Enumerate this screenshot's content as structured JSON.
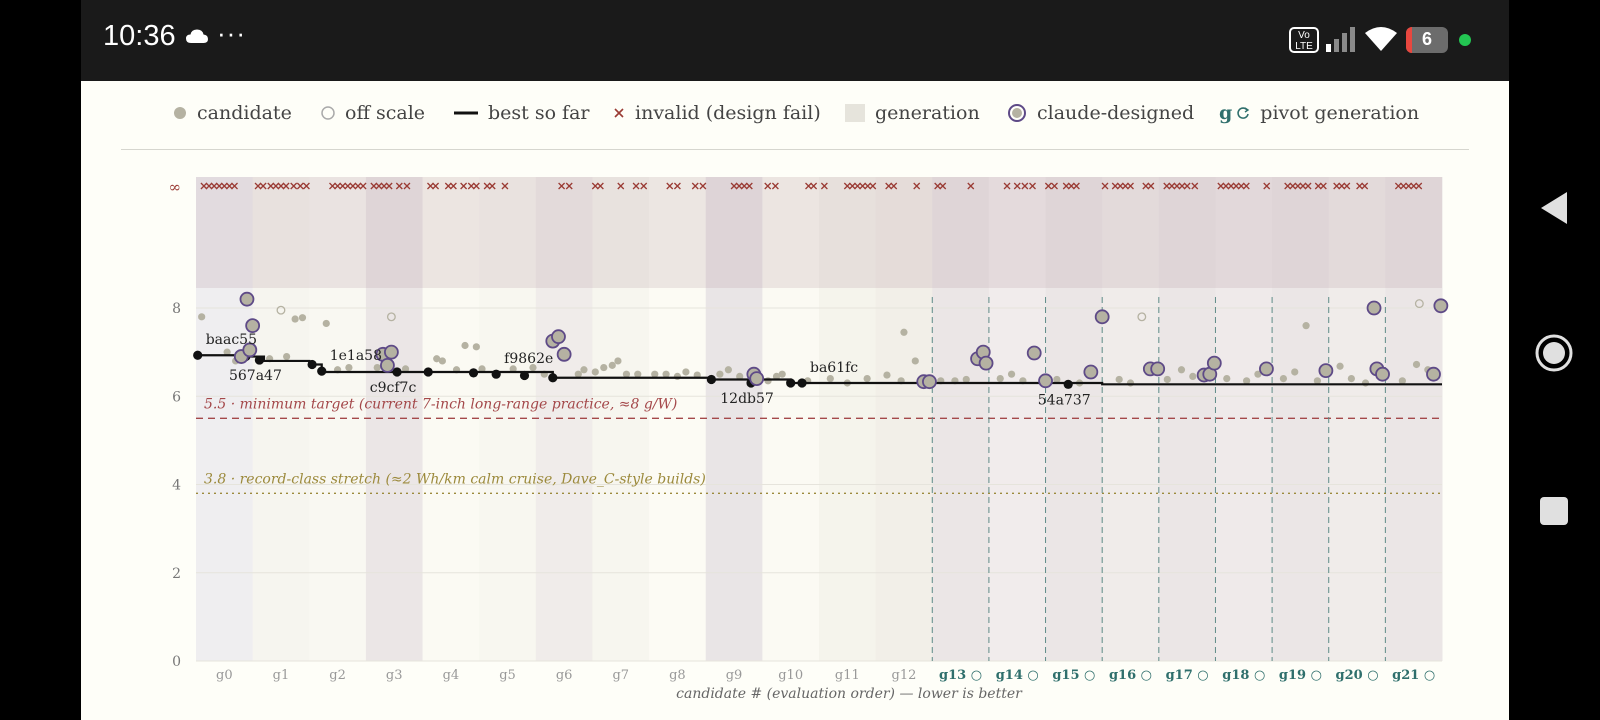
{
  "status_bar": {
    "time": "10:36",
    "dots": "···",
    "volte": "Vo LTE",
    "battery": "6",
    "icons": [
      "cloud-icon",
      "volte-icon",
      "signal-icon",
      "wifi-icon",
      "battery-icon"
    ]
  },
  "legend": [
    {
      "key": "candidate",
      "label": "candidate"
    },
    {
      "key": "offscale",
      "label": "off scale"
    },
    {
      "key": "best",
      "label": "best so far"
    },
    {
      "key": "invalid",
      "label": "invalid (design fail)"
    },
    {
      "key": "generation",
      "label": "generation"
    },
    {
      "key": "claude",
      "label": "claude-designed"
    },
    {
      "key": "pivot",
      "label": "pivot generation",
      "symbol": "g"
    }
  ],
  "colors": {
    "candidate": "#b5b2a2",
    "best": "#111111",
    "invalid": "#9a3b34",
    "claude": "#5e4a87",
    "pivot": "#2f6f6c",
    "min_target": "#a4484a",
    "stretch": "#9c8a3c"
  },
  "nav_icons": [
    "back-icon",
    "home-icon",
    "recents-icon"
  ],
  "chart_data": {
    "type": "scatter",
    "xlabel": "candidate # (evaluation order) — lower is better",
    "ylim": [
      0,
      8.8
    ],
    "yticks": [
      0,
      2,
      4,
      6,
      8
    ],
    "infinity_label": "∞",
    "generations": [
      "g0",
      "g1",
      "g2",
      "g3",
      "g4",
      "g5",
      "g6",
      "g7",
      "g8",
      "g9",
      "g10",
      "g11",
      "g12",
      "g13",
      "g14",
      "g15",
      "g16",
      "g17",
      "g18",
      "g19",
      "g20",
      "g21"
    ],
    "pivot_from": 13,
    "pivot_symbol": "○",
    "reference_lines": [
      {
        "y": 5.5,
        "label": "5.5 · minimum target (current 7-inch long-range practice, ≈8 g/W)",
        "style": "dashed"
      },
      {
        "y": 3.8,
        "label": "3.8 · record-class stretch (≈2 Wh/km calm cruise, Dave_C-style builds)",
        "style": "dotted"
      }
    ],
    "best_so_far": [
      {
        "gen": 0,
        "x": 0.03,
        "y": 6.93
      },
      {
        "gen": 0,
        "x": 0.9,
        "y": 6.93
      },
      {
        "gen": 0,
        "x": 0.9,
        "y": 6.9
      },
      {
        "gen": 1,
        "x": 0.2,
        "y": 6.9
      },
      {
        "gen": 1,
        "x": 0.2,
        "y": 6.8
      },
      {
        "gen": 1,
        "x": 1.0,
        "y": 6.8
      },
      {
        "gen": 1,
        "x": 1.0,
        "y": 6.72
      },
      {
        "gen": 2,
        "x": 0.22,
        "y": 6.72
      },
      {
        "gen": 2,
        "x": 0.22,
        "y": 6.55
      },
      {
        "gen": 3,
        "x": 0.55,
        "y": 6.55
      },
      {
        "gen": 6,
        "x": 0.3,
        "y": 6.55
      },
      {
        "gen": 6,
        "x": 0.3,
        "y": 6.42
      },
      {
        "gen": 9,
        "x": 0.1,
        "y": 6.42
      },
      {
        "gen": 9,
        "x": 0.1,
        "y": 6.38
      },
      {
        "gen": 10,
        "x": 0.5,
        "y": 6.38
      },
      {
        "gen": 10,
        "x": 0.5,
        "y": 6.3
      },
      {
        "gen": 16,
        "x": 0.0,
        "y": 6.3
      },
      {
        "gen": 16,
        "x": 0.0,
        "y": 6.27
      },
      {
        "gen": 21,
        "x": 1.0,
        "y": 6.27
      }
    ],
    "best_points": [
      {
        "gen": 0,
        "x": 0.03,
        "y": 6.93,
        "label": "baac55",
        "label_pos": "above"
      },
      {
        "gen": 0,
        "x": 0.88,
        "y": 6.9
      },
      {
        "gen": 1,
        "x": 0.12,
        "y": 6.82,
        "label": "567a47",
        "label_pos": "below"
      },
      {
        "gen": 2,
        "x": 0.05,
        "y": 6.72
      },
      {
        "gen": 2,
        "x": 0.22,
        "y": 6.57,
        "label": "1e1a58",
        "label_pos": "above"
      },
      {
        "gen": 3,
        "x": 0.55,
        "y": 6.55,
        "label": "c9cf7c",
        "label_pos": "below"
      },
      {
        "gen": 4,
        "x": 0.1,
        "y": 6.55
      },
      {
        "gen": 4,
        "x": 0.9,
        "y": 6.53
      },
      {
        "gen": 5,
        "x": 0.3,
        "y": 6.5,
        "label": "f9862e",
        "label_pos": "above"
      },
      {
        "gen": 5,
        "x": 0.8,
        "y": 6.47
      },
      {
        "gen": 6,
        "x": 0.3,
        "y": 6.42
      },
      {
        "gen": 9,
        "x": 0.1,
        "y": 6.38
      },
      {
        "gen": 9,
        "x": 0.8,
        "y": 6.3,
        "label": "12db57",
        "label_pos": "below"
      },
      {
        "gen": 10,
        "x": 0.5,
        "y": 6.3
      },
      {
        "gen": 10,
        "x": 0.7,
        "y": 6.3,
        "label": "ba61fc",
        "label_pos": "above"
      },
      {
        "gen": 15,
        "x": 0.4,
        "y": 6.27,
        "label": "54a737",
        "label_pos": "below"
      }
    ],
    "claude_points": [
      {
        "gen": 0,
        "x": 0.9,
        "y": 8.2
      },
      {
        "gen": 1,
        "x": 0.0,
        "y": 7.6
      },
      {
        "gen": 0,
        "x": 0.8,
        "y": 6.9
      },
      {
        "gen": 0,
        "x": 0.95,
        "y": 7.05
      },
      {
        "gen": 3,
        "x": 0.3,
        "y": 6.95
      },
      {
        "gen": 3,
        "x": 0.45,
        "y": 7.0
      },
      {
        "gen": 3,
        "x": 0.38,
        "y": 6.7
      },
      {
        "gen": 6,
        "x": 0.3,
        "y": 7.25
      },
      {
        "gen": 6,
        "x": 0.4,
        "y": 7.35
      },
      {
        "gen": 6,
        "x": 0.5,
        "y": 6.95
      },
      {
        "gen": 9,
        "x": 0.85,
        "y": 6.5
      },
      {
        "gen": 9,
        "x": 0.9,
        "y": 6.4
      },
      {
        "gen": 12,
        "x": 0.85,
        "y": 6.33
      },
      {
        "gen": 12,
        "x": 0.95,
        "y": 6.33
      },
      {
        "gen": 13,
        "x": 0.8,
        "y": 6.85
      },
      {
        "gen": 13,
        "x": 0.9,
        "y": 7.0
      },
      {
        "gen": 13,
        "x": 0.95,
        "y": 6.75
      },
      {
        "gen": 14,
        "x": 0.8,
        "y": 6.98
      },
      {
        "gen": 15,
        "x": 0.0,
        "y": 6.35
      },
      {
        "gen": 15,
        "x": 0.8,
        "y": 6.55
      },
      {
        "gen": 16,
        "x": 0.0,
        "y": 7.8
      },
      {
        "gen": 16,
        "x": 0.85,
        "y": 6.62
      },
      {
        "gen": 16,
        "x": 0.98,
        "y": 6.62
      },
      {
        "gen": 17,
        "x": 0.8,
        "y": 6.48
      },
      {
        "gen": 17,
        "x": 0.9,
        "y": 6.5
      },
      {
        "gen": 17,
        "x": 0.98,
        "y": 6.75
      },
      {
        "gen": 18,
        "x": 0.9,
        "y": 6.62
      },
      {
        "gen": 19,
        "x": 0.95,
        "y": 6.58
      },
      {
        "gen": 20,
        "x": 0.8,
        "y": 8.0
      },
      {
        "gen": 20,
        "x": 0.85,
        "y": 6.62
      },
      {
        "gen": 20,
        "x": 0.95,
        "y": 6.5
      },
      {
        "gen": 21,
        "x": 0.85,
        "y": 6.5
      },
      {
        "gen": 21,
        "x": 0.98,
        "y": 8.05
      }
    ],
    "offscale_points": [
      {
        "gen": 1,
        "x": 0.5,
        "y": 7.95
      },
      {
        "gen": 3,
        "x": 0.45,
        "y": 7.8
      },
      {
        "gen": 16,
        "x": 0.7,
        "y": 7.8
      },
      {
        "gen": 21,
        "x": 0.6,
        "y": 8.1
      }
    ],
    "candidate_points": [
      {
        "gen": 0,
        "x": 0.1,
        "y": 7.8
      },
      {
        "gen": 0,
        "x": 0.55,
        "y": 7.0
      },
      {
        "gen": 0,
        "x": 0.7,
        "y": 6.8
      },
      {
        "gen": 1,
        "x": 0.3,
        "y": 6.85
      },
      {
        "gen": 1,
        "x": 0.6,
        "y": 6.9
      },
      {
        "gen": 1,
        "x": 0.75,
        "y": 7.75
      },
      {
        "gen": 1,
        "x": 0.88,
        "y": 7.78
      },
      {
        "gen": 2,
        "x": 0.3,
        "y": 7.65
      },
      {
        "gen": 2,
        "x": 0.5,
        "y": 6.6
      },
      {
        "gen": 2,
        "x": 0.7,
        "y": 6.65
      },
      {
        "gen": 3,
        "x": 0.2,
        "y": 6.65
      },
      {
        "gen": 3,
        "x": 0.7,
        "y": 6.62
      },
      {
        "gen": 4,
        "x": 0.25,
        "y": 6.85
      },
      {
        "gen": 4,
        "x": 0.35,
        "y": 6.8
      },
      {
        "gen": 4,
        "x": 0.6,
        "y": 6.6
      },
      {
        "gen": 4,
        "x": 0.75,
        "y": 7.15
      },
      {
        "gen": 4,
        "x": 0.95,
        "y": 7.12
      },
      {
        "gen": 5,
        "x": 0.05,
        "y": 6.62
      },
      {
        "gen": 5,
        "x": 0.6,
        "y": 6.62
      },
      {
        "gen": 5,
        "x": 0.95,
        "y": 6.65
      },
      {
        "gen": 6,
        "x": 0.15,
        "y": 6.5
      },
      {
        "gen": 6,
        "x": 0.75,
        "y": 6.5
      },
      {
        "gen": 6,
        "x": 0.85,
        "y": 6.6
      },
      {
        "gen": 7,
        "x": 0.05,
        "y": 6.55
      },
      {
        "gen": 7,
        "x": 0.2,
        "y": 6.65
      },
      {
        "gen": 7,
        "x": 0.35,
        "y": 6.7
      },
      {
        "gen": 7,
        "x": 0.45,
        "y": 6.8
      },
      {
        "gen": 7,
        "x": 0.6,
        "y": 6.5
      },
      {
        "gen": 7,
        "x": 0.8,
        "y": 6.5
      },
      {
        "gen": 8,
        "x": 0.1,
        "y": 6.5
      },
      {
        "gen": 8,
        "x": 0.3,
        "y": 6.5
      },
      {
        "gen": 8,
        "x": 0.5,
        "y": 6.45
      },
      {
        "gen": 8,
        "x": 0.65,
        "y": 6.55
      },
      {
        "gen": 8,
        "x": 0.85,
        "y": 6.48
      },
      {
        "gen": 9,
        "x": 0.25,
        "y": 6.5
      },
      {
        "gen": 9,
        "x": 0.4,
        "y": 6.6
      },
      {
        "gen": 9,
        "x": 0.6,
        "y": 6.45
      },
      {
        "gen": 10,
        "x": 0.1,
        "y": 6.35
      },
      {
        "gen": 10,
        "x": 0.25,
        "y": 6.45
      },
      {
        "gen": 10,
        "x": 0.35,
        "y": 6.5
      },
      {
        "gen": 10,
        "x": 0.8,
        "y": 6.35
      },
      {
        "gen": 11,
        "x": 0.2,
        "y": 6.4
      },
      {
        "gen": 11,
        "x": 0.5,
        "y": 6.3
      },
      {
        "gen": 11,
        "x": 0.85,
        "y": 6.4
      },
      {
        "gen": 12,
        "x": 0.2,
        "y": 6.48
      },
      {
        "gen": 12,
        "x": 0.45,
        "y": 6.35
      },
      {
        "gen": 12,
        "x": 0.5,
        "y": 7.45
      },
      {
        "gen": 12,
        "x": 0.7,
        "y": 6.8
      },
      {
        "gen": 13,
        "x": 0.15,
        "y": 6.35
      },
      {
        "gen": 13,
        "x": 0.4,
        "y": 6.35
      },
      {
        "gen": 13,
        "x": 0.6,
        "y": 6.38
      },
      {
        "gen": 14,
        "x": 0.2,
        "y": 6.4
      },
      {
        "gen": 14,
        "x": 0.4,
        "y": 6.5
      },
      {
        "gen": 14,
        "x": 0.6,
        "y": 6.35
      },
      {
        "gen": 15,
        "x": 0.2,
        "y": 6.38
      },
      {
        "gen": 15,
        "x": 0.6,
        "y": 6.3
      },
      {
        "gen": 16,
        "x": 0.3,
        "y": 6.38
      },
      {
        "gen": 16,
        "x": 0.5,
        "y": 6.3
      },
      {
        "gen": 17,
        "x": 0.15,
        "y": 6.38
      },
      {
        "gen": 17,
        "x": 0.4,
        "y": 6.6
      },
      {
        "gen": 17,
        "x": 0.6,
        "y": 6.45
      },
      {
        "gen": 18,
        "x": 0.2,
        "y": 6.4
      },
      {
        "gen": 18,
        "x": 0.55,
        "y": 6.35
      },
      {
        "gen": 18,
        "x": 0.75,
        "y": 6.5
      },
      {
        "gen": 19,
        "x": 0.2,
        "y": 6.4
      },
      {
        "gen": 19,
        "x": 0.4,
        "y": 6.55
      },
      {
        "gen": 19,
        "x": 0.6,
        "y": 7.6
      },
      {
        "gen": 19,
        "x": 0.8,
        "y": 6.35
      },
      {
        "gen": 20,
        "x": 0.2,
        "y": 6.68
      },
      {
        "gen": 20,
        "x": 0.4,
        "y": 6.4
      },
      {
        "gen": 20,
        "x": 0.65,
        "y": 6.3
      },
      {
        "gen": 21,
        "x": 0.3,
        "y": 6.35
      },
      {
        "gen": 21,
        "x": 0.55,
        "y": 6.72
      },
      {
        "gen": 21,
        "x": 0.75,
        "y": 6.6
      }
    ],
    "invalid_marks": [
      {
        "gen": 0,
        "x": 0.1
      },
      {
        "gen": 0,
        "x": 0.2
      },
      {
        "gen": 0,
        "x": 0.3
      },
      {
        "gen": 0,
        "x": 0.4
      },
      {
        "gen": 0,
        "x": 0.5
      },
      {
        "gen": 0,
        "x": 0.6
      },
      {
        "gen": 0,
        "x": 0.7
      },
      {
        "gen": 1,
        "x": 0.05
      },
      {
        "gen": 1,
        "x": 0.15
      },
      {
        "gen": 1,
        "x": 0.3
      },
      {
        "gen": 1,
        "x": 0.4
      },
      {
        "gen": 1,
        "x": 0.5
      },
      {
        "gen": 1,
        "x": 0.6
      },
      {
        "gen": 1,
        "x": 0.75
      },
      {
        "gen": 1,
        "x": 0.88
      },
      {
        "gen": 1,
        "x": 1.0
      },
      {
        "gen": 2,
        "x": 0.4
      },
      {
        "gen": 2,
        "x": 0.5
      },
      {
        "gen": 2,
        "x": 0.6
      },
      {
        "gen": 2,
        "x": 0.7
      },
      {
        "gen": 2,
        "x": 0.8
      },
      {
        "gen": 2,
        "x": 0.9
      },
      {
        "gen": 2,
        "x": 1.0
      },
      {
        "gen": 3,
        "x": 0.1
      },
      {
        "gen": 3,
        "x": 0.2
      },
      {
        "gen": 3,
        "x": 0.3
      },
      {
        "gen": 3,
        "x": 0.4
      },
      {
        "gen": 3,
        "x": 0.6
      },
      {
        "gen": 3,
        "x": 0.75
      },
      {
        "gen": 4,
        "x": 0.1
      },
      {
        "gen": 4,
        "x": 0.2
      },
      {
        "gen": 4,
        "x": 0.45
      },
      {
        "gen": 4,
        "x": 0.55
      },
      {
        "gen": 4,
        "x": 0.75
      },
      {
        "gen": 4,
        "x": 0.9
      },
      {
        "gen": 4,
        "x": 1.0
      },
      {
        "gen": 5,
        "x": 0.1
      },
      {
        "gen": 5,
        "x": 0.2
      },
      {
        "gen": 5,
        "x": 0.45
      },
      {
        "gen": 6,
        "x": 0.45
      },
      {
        "gen": 6,
        "x": 0.6
      },
      {
        "gen": 7,
        "x": 0.0
      },
      {
        "gen": 7,
        "x": 0.1
      },
      {
        "gen": 7,
        "x": 0.5
      },
      {
        "gen": 7,
        "x": 0.8
      },
      {
        "gen": 7,
        "x": 0.95
      },
      {
        "gen": 8,
        "x": 0.35
      },
      {
        "gen": 8,
        "x": 0.5
      },
      {
        "gen": 8,
        "x": 0.85
      },
      {
        "gen": 8,
        "x": 1.0
      },
      {
        "gen": 9,
        "x": 0.5
      },
      {
        "gen": 9,
        "x": 0.6
      },
      {
        "gen": 9,
        "x": 0.7
      },
      {
        "gen": 9,
        "x": 0.8
      },
      {
        "gen": 10,
        "x": 0.05
      },
      {
        "gen": 10,
        "x": 0.2
      },
      {
        "gen": 10,
        "x": 0.85
      },
      {
        "gen": 10,
        "x": 0.95
      },
      {
        "gen": 11,
        "x": 0.05
      },
      {
        "gen": 11,
        "x": 0.5
      },
      {
        "gen": 11,
        "x": 0.6
      },
      {
        "gen": 11,
        "x": 0.7
      },
      {
        "gen": 11,
        "x": 0.8
      },
      {
        "gen": 11,
        "x": 0.9
      },
      {
        "gen": 11,
        "x": 1.0
      },
      {
        "gen": 12,
        "x": 0.2
      },
      {
        "gen": 12,
        "x": 0.3
      },
      {
        "gen": 12,
        "x": 0.75
      },
      {
        "gen": 13,
        "x": 0.05
      },
      {
        "gen": 13,
        "x": 0.15
      },
      {
        "gen": 13,
        "x": 0.7
      },
      {
        "gen": 14,
        "x": 0.3
      },
      {
        "gen": 14,
        "x": 0.5
      },
      {
        "gen": 14,
        "x": 0.65
      },
      {
        "gen": 14,
        "x": 0.8
      },
      {
        "gen": 15,
        "x": 0.0
      },
      {
        "gen": 15,
        "x": 0.12
      },
      {
        "gen": 15,
        "x": 0.35
      },
      {
        "gen": 15,
        "x": 0.45
      },
      {
        "gen": 15,
        "x": 0.55
      },
      {
        "gen": 16,
        "x": 0.0
      },
      {
        "gen": 16,
        "x": 0.2
      },
      {
        "gen": 16,
        "x": 0.3
      },
      {
        "gen": 16,
        "x": 0.4
      },
      {
        "gen": 16,
        "x": 0.5
      },
      {
        "gen": 16,
        "x": 0.8
      },
      {
        "gen": 16,
        "x": 0.9
      },
      {
        "gen": 17,
        "x": 0.1
      },
      {
        "gen": 17,
        "x": 0.2
      },
      {
        "gen": 17,
        "x": 0.3
      },
      {
        "gen": 17,
        "x": 0.4
      },
      {
        "gen": 17,
        "x": 0.5
      },
      {
        "gen": 17,
        "x": 0.65
      },
      {
        "gen": 18,
        "x": 0.05
      },
      {
        "gen": 18,
        "x": 0.15
      },
      {
        "gen": 18,
        "x": 0.25
      },
      {
        "gen": 18,
        "x": 0.35
      },
      {
        "gen": 18,
        "x": 0.45
      },
      {
        "gen": 18,
        "x": 0.55
      },
      {
        "gen": 18,
        "x": 0.95
      },
      {
        "gen": 19,
        "x": 0.25
      },
      {
        "gen": 19,
        "x": 0.35
      },
      {
        "gen": 19,
        "x": 0.45
      },
      {
        "gen": 19,
        "x": 0.55
      },
      {
        "gen": 19,
        "x": 0.65
      },
      {
        "gen": 19,
        "x": 0.85
      },
      {
        "gen": 19,
        "x": 0.95
      },
      {
        "gen": 20,
        "x": 0.1
      },
      {
        "gen": 20,
        "x": 0.2
      },
      {
        "gen": 20,
        "x": 0.3
      },
      {
        "gen": 20,
        "x": 0.55
      },
      {
        "gen": 20,
        "x": 0.65
      },
      {
        "gen": 21,
        "x": 0.2
      },
      {
        "gen": 21,
        "x": 0.3
      },
      {
        "gen": 21,
        "x": 0.4
      },
      {
        "gen": 21,
        "x": 0.5
      },
      {
        "gen": 21,
        "x": 0.6
      }
    ]
  }
}
